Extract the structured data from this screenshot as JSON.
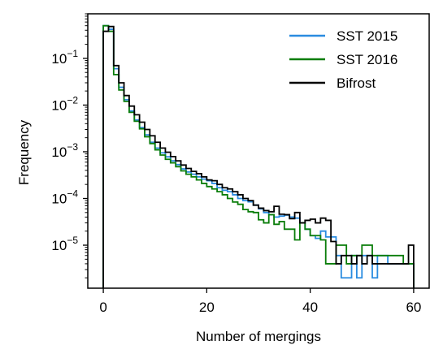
{
  "chart_data": {
    "type": "line",
    "drawstyle": "steps",
    "title": "",
    "xlabel": "Number of mergings",
    "ylabel": "Frequency",
    "xlim": [
      -3,
      63
    ],
    "ylim": [
      1.2e-06,
      0.9
    ],
    "yscale": "log",
    "x_ticks": [
      0,
      20,
      40,
      60
    ],
    "x_tick_labels": [
      "0",
      "20",
      "40",
      "60"
    ],
    "y_ticks": [
      1e-05,
      0.0001,
      0.001,
      0.01,
      0.1
    ],
    "y_tick_labels": [
      {
        "base": "10",
        "exp": "−5"
      },
      {
        "base": "10",
        "exp": "−4"
      },
      {
        "base": "10",
        "exp": "−3"
      },
      {
        "base": "10",
        "exp": "−2"
      },
      {
        "base": "10",
        "exp": "−1"
      }
    ],
    "grid": false,
    "legend_position": "top-right",
    "x": [
      0,
      1,
      2,
      3,
      4,
      5,
      6,
      7,
      8,
      9,
      10,
      11,
      12,
      13,
      14,
      15,
      16,
      17,
      18,
      19,
      20,
      21,
      22,
      23,
      24,
      25,
      26,
      27,
      28,
      29,
      30,
      31,
      32,
      33,
      34,
      35,
      36,
      37,
      38,
      39,
      40,
      41,
      42,
      43,
      44,
      45,
      46,
      47,
      48,
      49,
      50,
      51,
      52,
      53,
      54,
      55,
      56,
      57,
      58,
      59,
      60
    ],
    "series": [
      {
        "name": "SST 2015",
        "color": "#2a8ce0",
        "values": [
          0.5,
          0.42,
          0.06,
          0.024,
          0.013,
          0.0075,
          0.0048,
          0.0033,
          0.0023,
          0.0016,
          0.0012,
          0.00095,
          0.00078,
          0.00064,
          0.00053,
          0.00043,
          0.00037,
          0.00033,
          0.00029,
          0.00026,
          0.00024,
          0.00021,
          0.00017,
          0.00015,
          0.00014,
          0.00012,
          0.0001,
          9e-05,
          8.5e-05,
          7.2e-05,
          6e-05,
          5e-05,
          4.5e-05,
          4e-05,
          4.2e-05,
          4.4e-05,
          4e-05,
          3.8e-05,
          3e-05,
          2.2e-05,
          1.6e-05,
          1.4e-05,
          2e-05,
          1.5e-05,
          1.5e-05,
          6e-06,
          2e-06,
          2e-06,
          6e-06,
          2e-06,
          6e-06,
          6e-06,
          2e-06,
          6e-06,
          6e-06,
          4e-06,
          4e-06,
          4e-06,
          4e-06,
          4e-06,
          null
        ]
      },
      {
        "name": "SST 2016",
        "color": "#0a7d0a",
        "values": [
          0.5,
          0.38,
          0.045,
          0.021,
          0.012,
          0.007,
          0.0045,
          0.0031,
          0.0021,
          0.0015,
          0.0011,
          0.00085,
          0.00069,
          0.00058,
          0.00048,
          0.00039,
          0.00033,
          0.00029,
          0.00025,
          0.00021,
          0.00018,
          0.00016,
          0.00014,
          0.00012,
          0.0001,
          8.4e-05,
          7.5e-05,
          5.8e-05,
          5.2e-05,
          5e-05,
          3.5e-05,
          3e-05,
          4.5e-05,
          2.8e-05,
          3.2e-05,
          2.2e-05,
          2.2e-05,
          1.3e-05,
          3e-05,
          2.2e-05,
          1.6e-05,
          1.6e-05,
          1.3e-05,
          4e-06,
          4e-06,
          1e-05,
          1e-05,
          4e-06,
          6e-06,
          6e-06,
          1e-05,
          1e-05,
          6e-06,
          6e-06,
          6e-06,
          6e-06,
          6e-06,
          6e-06,
          4e-06,
          4e-06,
          null
        ]
      },
      {
        "name": "Bifrost",
        "color": "#000000",
        "values": [
          0.38,
          0.48,
          0.07,
          0.03,
          0.016,
          0.0095,
          0.0062,
          0.0043,
          0.003,
          0.0022,
          0.0016,
          0.0012,
          0.00098,
          0.00079,
          0.00064,
          0.00052,
          0.00044,
          0.00038,
          0.00034,
          0.00029,
          0.00025,
          0.00024,
          0.0002,
          0.00017,
          0.00016,
          0.00014,
          0.00012,
          0.0001,
          9e-05,
          7.2e-05,
          6.2e-05,
          5.5e-05,
          5.2e-05,
          6.8e-05,
          4.6e-05,
          4.5e-05,
          3.7e-05,
          5e-05,
          3e-05,
          3.4e-05,
          3.6e-05,
          3e-05,
          3.8e-05,
          3.4e-05,
          1.2e-05,
          4e-06,
          6e-06,
          6e-06,
          4e-06,
          6e-06,
          4e-06,
          6e-06,
          4e-06,
          4e-06,
          4e-06,
          4e-06,
          4e-06,
          4e-06,
          4e-06,
          1e-05,
          null
        ]
      }
    ]
  }
}
